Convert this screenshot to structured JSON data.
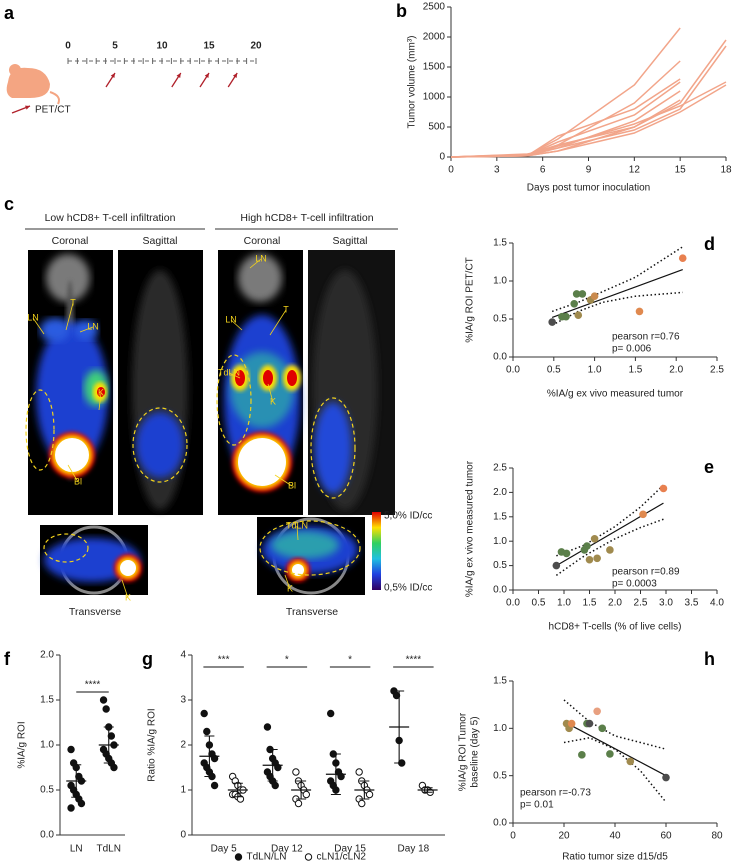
{
  "timeline": {
    "panel": "a",
    "range": [
      0,
      20
    ],
    "ticks": [
      0,
      5,
      10,
      15,
      20
    ],
    "scan_days": [
      5,
      12,
      15,
      18
    ],
    "legend": "PET/CT"
  },
  "imaging": {
    "panel": "c",
    "groups": [
      {
        "title": "Low hCD8+ T-cell infiltration",
        "views": [
          "Coronal",
          "Sagittal"
        ],
        "transverse": "Transverse",
        "labels": [
          "LN",
          "T",
          "LN",
          "K",
          "Bl",
          "K"
        ]
      },
      {
        "title": "High hCD8+ T-cell infiltration",
        "views": [
          "Coronal",
          "Sagittal"
        ],
        "transverse": "Transverse",
        "labels": [
          "LN",
          "LN",
          "T",
          "TdLN",
          "K",
          "Bl",
          "TdLN",
          "K"
        ]
      }
    ],
    "colorbar": {
      "max": "5,0% ID/cc",
      "min": "0,5% ID/cc"
    }
  },
  "chart_data": [
    {
      "panel": "b",
      "type": "line",
      "color": "#f2a58a",
      "x": [
        0,
        5,
        7,
        12,
        15,
        18
      ],
      "series": [
        {
          "values": [
            0,
            30,
            300,
            1200,
            2150,
            null
          ]
        },
        {
          "values": [
            0,
            40,
            200,
            900,
            1600,
            null
          ]
        },
        {
          "values": [
            0,
            20,
            350,
            800,
            1300,
            null
          ]
        },
        {
          "values": [
            0,
            30,
            250,
            700,
            1250,
            null
          ]
        },
        {
          "values": [
            0,
            50,
            150,
            600,
            1100,
            null
          ]
        },
        {
          "values": [
            0,
            20,
            100,
            500,
            950,
            null
          ]
        },
        {
          "values": [
            0,
            30,
            200,
            500,
            900,
            1950
          ]
        },
        {
          "values": [
            0,
            20,
            150,
            450,
            800,
            1850
          ]
        },
        {
          "values": [
            0,
            40,
            180,
            550,
            850,
            1250
          ]
        },
        {
          "values": [
            0,
            20,
            100,
            400,
            750,
            1200
          ]
        }
      ],
      "xlim": [
        0,
        18
      ],
      "xticks": [
        0,
        3,
        6,
        9,
        12,
        15,
        18
      ],
      "ylim": [
        0,
        2500
      ],
      "yticks": [
        0,
        500,
        1000,
        1500,
        2000,
        2500
      ],
      "xlabel": "Days post tumor inoculation",
      "ylabel": "Tumor volume (mm³)"
    },
    {
      "panel": "d",
      "type": "scatter",
      "x": [
        0.48,
        0.6,
        0.65,
        0.75,
        0.78,
        0.85,
        0.8,
        0.95,
        1.0,
        1.55,
        2.08
      ],
      "y": [
        0.46,
        0.53,
        0.53,
        0.7,
        0.83,
        0.83,
        0.55,
        0.75,
        0.8,
        0.6,
        1.3
      ],
      "point_colors": [
        "#4d4d4d",
        "#5b7f4a",
        "#5b7f4a",
        "#5b7f4a",
        "#5b7f4a",
        "#5b7f4a",
        "#a08a4e",
        "#a08a4e",
        "#c98a4e",
        "#e0894f",
        "#e8804f"
      ],
      "fit": {
        "x": [
          0.48,
          2.08
        ],
        "y": [
          0.52,
          1.15
        ]
      },
      "ci_upper": {
        "x": [
          0.48,
          0.8,
          1.1,
          1.5,
          2.08
        ],
        "y": [
          0.6,
          0.72,
          0.86,
          1.05,
          1.45
        ]
      },
      "ci_lower": {
        "x": [
          0.48,
          0.8,
          1.1,
          1.5,
          2.08
        ],
        "y": [
          0.42,
          0.6,
          0.72,
          0.8,
          0.85
        ]
      },
      "xlim": [
        0,
        2.5
      ],
      "xticks": [
        {
          "value": 0,
          "label": "0.0"
        },
        0.5,
        {
          "value": 1,
          "label": "1.0"
        },
        1.5,
        {
          "value": 2,
          "label": "2.0"
        },
        2.5
      ],
      "ylim": [
        0,
        1.5
      ],
      "yticks": [
        {
          "value": 0,
          "label": "0.0"
        },
        0.5,
        {
          "value": 1,
          "label": "1.0"
        },
        1.5
      ],
      "xlabel": "%IA/g ex vivo measured tumor",
      "ylabel": "%IA/g ROI PET/CT",
      "annotations": [
        "pearson r=0.76",
        "p= 0.006"
      ]
    },
    {
      "panel": "e",
      "type": "scatter",
      "x": [
        0.85,
        0.95,
        1.05,
        1.4,
        1.45,
        1.5,
        1.6,
        1.65,
        1.9,
        2.55,
        2.95
      ],
      "y": [
        0.5,
        0.78,
        0.75,
        0.82,
        0.9,
        0.62,
        1.05,
        0.65,
        0.82,
        1.55,
        2.08
      ],
      "point_colors": [
        "#4d4d4d",
        "#5b7f4a",
        "#5b7f4a",
        "#5b7f4a",
        "#5b7f4a",
        "#a08a4e",
        "#a08a4e",
        "#a08a4e",
        "#a08a4e",
        "#e0894f",
        "#e8804f"
      ],
      "fit": {
        "x": [
          0.85,
          2.95
        ],
        "y": [
          0.5,
          1.78
        ]
      },
      "ci_upper": {
        "x": [
          0.85,
          1.4,
          2,
          2.5,
          2.95
        ],
        "y": [
          0.7,
          0.92,
          1.3,
          1.7,
          2.15
        ]
      },
      "ci_lower": {
        "x": [
          0.85,
          1.4,
          2,
          2.5,
          2.95
        ],
        "y": [
          0.3,
          0.7,
          1.05,
          1.28,
          1.45
        ]
      },
      "xlim": [
        0,
        4
      ],
      "xticks": [
        {
          "value": 0,
          "label": "0.0"
        },
        0.5,
        {
          "value": 1,
          "label": "1.0"
        },
        1.5,
        {
          "value": 2,
          "label": "2.0"
        },
        2.5,
        {
          "value": 3,
          "label": "3.0"
        },
        3.5,
        {
          "value": 4,
          "label": "4.0"
        }
      ],
      "ylim": [
        0,
        2.5
      ],
      "yticks": [
        {
          "value": 0,
          "label": "0.0"
        },
        0.5,
        {
          "value": 1,
          "label": "1.0"
        },
        1.5,
        {
          "value": 2,
          "label": "2.0"
        },
        2.5
      ],
      "xlabel": "hCD8+ T-cells (% of live cells)",
      "ylabel": "%IA/g ex vivo measured tumor",
      "annotations": [
        "pearson r=0.89",
        "p= 0.0003"
      ]
    },
    {
      "panel": "f",
      "type": "dot",
      "categories": [
        "LN",
        "TdLN"
      ],
      "series": [
        {
          "marker": "filled",
          "values": [
            [
              0.95,
              0.8,
              0.75,
              0.65,
              0.6,
              0.55,
              0.5,
              0.45,
              0.4,
              0.35,
              0.3
            ],
            [
              1.5,
              1.4,
              1.2,
              1.1,
              1.0,
              0.95,
              0.9,
              0.85,
              0.8,
              0.75
            ]
          ],
          "mean": [
            0.6,
            1.0
          ],
          "sd": [
            0.18,
            0.2
          ]
        }
      ],
      "ylim": [
        0,
        2
      ],
      "yticks": [
        {
          "value": 0,
          "label": "0.0"
        },
        0.5,
        {
          "value": 1,
          "label": "1.0"
        },
        1.5,
        {
          "value": 2,
          "label": "2.0"
        }
      ],
      "ylabel": "%IA/g ROI",
      "significance": "****"
    },
    {
      "panel": "g",
      "type": "dot",
      "categories": [
        "Day 5",
        "Day 12",
        "Day 15",
        "Day 18"
      ],
      "series": [
        {
          "name": "TdLN/LN",
          "marker": "filled",
          "values": [
            [
              2.7,
              2.3,
              2.0,
              1.8,
              1.7,
              1.6,
              1.5,
              1.4,
              1.3,
              1.1
            ],
            [
              2.4,
              1.9,
              1.7,
              1.6,
              1.5,
              1.4,
              1.3,
              1.2,
              1.1
            ],
            [
              2.7,
              1.8,
              1.6,
              1.4,
              1.3,
              1.2,
              1.1,
              1.0
            ],
            [
              3.2,
              3.1,
              2.1,
              1.6
            ]
          ],
          "mean": [
            1.75,
            1.55,
            1.35,
            2.4
          ],
          "sd": [
            0.45,
            0.35,
            0.45,
            0.8
          ]
        },
        {
          "name": "cLN1/cLN2",
          "marker": "open",
          "values": [
            [
              1.3,
              1.2,
              1.1,
              1.0,
              1.0,
              0.9,
              0.9,
              0.85,
              0.8
            ],
            [
              1.4,
              1.2,
              1.1,
              1.0,
              0.9,
              0.8,
              0.7
            ],
            [
              1.4,
              1.2,
              1.1,
              1.0,
              0.9,
              0.8,
              0.7
            ],
            [
              1.1,
              1.0,
              1.0,
              0.95
            ]
          ],
          "mean": [
            1.0,
            1.0,
            1.0,
            1.0
          ],
          "sd": [
            0.15,
            0.2,
            0.2,
            0.05
          ]
        }
      ],
      "ylim": [
        0,
        4
      ],
      "yticks": [
        0,
        1,
        2,
        3,
        4
      ],
      "ylabel": "Ratio %IA/g ROI",
      "significance": [
        "***",
        "*",
        "*",
        "****"
      ]
    },
    {
      "panel": "h",
      "type": "scatter",
      "x": [
        21,
        22,
        23,
        27,
        29,
        30,
        33,
        35,
        38,
        46,
        60
      ],
      "y": [
        1.05,
        1.0,
        1.05,
        0.72,
        1.05,
        1.05,
        1.18,
        1.0,
        0.73,
        0.65,
        0.48
      ],
      "point_colors": [
        "#a08a4e",
        "#a08a4e",
        "#e0894f",
        "#5b7f4a",
        "#5b7f4a",
        "#4d4d4d",
        "#e8a080",
        "#5b7f4a",
        "#5b7f4a",
        "#a08a4e",
        "#4d4d4d"
      ],
      "fit": {
        "x": [
          20,
          60
        ],
        "y": [
          1.07,
          0.5
        ]
      },
      "ci_upper": {
        "x": [
          20,
          30,
          40,
          50,
          60
        ],
        "y": [
          1.3,
          1.07,
          0.92,
          0.85,
          0.78
        ]
      },
      "ci_lower": {
        "x": [
          20,
          30,
          40,
          50,
          60
        ],
        "y": [
          0.85,
          0.9,
          0.78,
          0.55,
          0.22
        ]
      },
      "xlim": [
        0,
        80
      ],
      "xticks": [
        0,
        20,
        40,
        60,
        80
      ],
      "ylim": [
        0,
        1.5
      ],
      "yticks": [
        {
          "value": 0,
          "label": "0.0"
        },
        0.5,
        {
          "value": 1,
          "label": "1.0"
        },
        1.5
      ],
      "xlabel": "Ratio tumor size d15/d5",
      "ylabel": [
        "%IA/g ROI Tumor",
        "baseline (day 5)"
      ],
      "annotations": [
        "pearson r=-0.73",
        "p= 0.01"
      ]
    }
  ]
}
